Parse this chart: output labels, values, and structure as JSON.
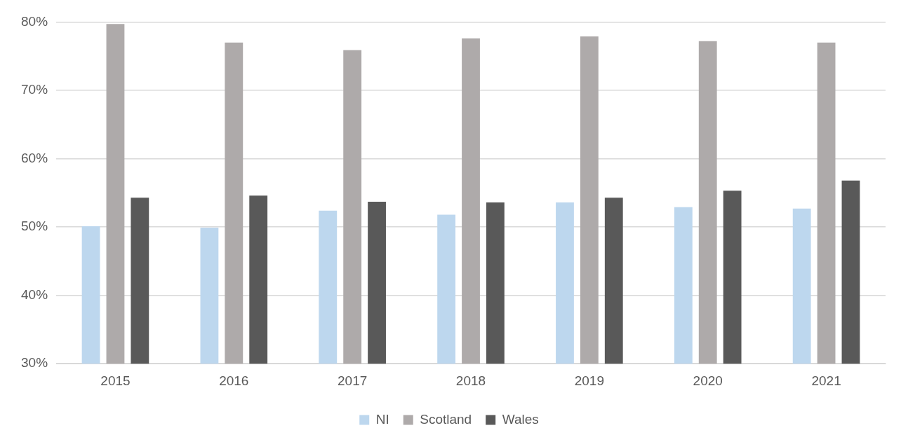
{
  "chart_data": {
    "type": "bar",
    "categories": [
      "2015",
      "2016",
      "2017",
      "2018",
      "2019",
      "2020",
      "2021"
    ],
    "series": [
      {
        "name": "NI",
        "color": "#bdd7ee",
        "values": [
          50.1,
          49.9,
          52.4,
          51.8,
          53.6,
          52.9,
          52.7
        ]
      },
      {
        "name": "Scotland",
        "color": "#aeaaaa",
        "values": [
          79.7,
          77.0,
          75.9,
          77.6,
          77.9,
          77.2,
          77.0
        ]
      },
      {
        "name": "Wales",
        "color": "#595959",
        "values": [
          54.3,
          54.6,
          53.7,
          53.6,
          54.3,
          55.3,
          56.8
        ]
      }
    ],
    "ylim": [
      30,
      80
    ],
    "yticks": [
      {
        "value": 30,
        "label": "30%"
      },
      {
        "value": 40,
        "label": "40%"
      },
      {
        "value": 50,
        "label": "50%"
      },
      {
        "value": 60,
        "label": "60%"
      },
      {
        "value": 70,
        "label": "70%"
      },
      {
        "value": 80,
        "label": "80%"
      }
    ],
    "grid": "y",
    "legend": "bottom"
  }
}
